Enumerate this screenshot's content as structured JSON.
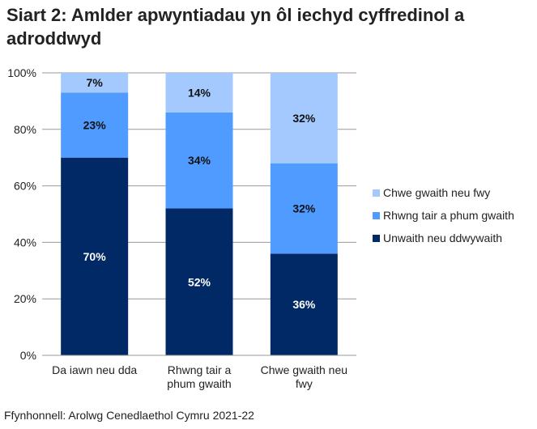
{
  "title": "Siart 2: Amlder apwyntiadau yn ôl iechyd cyffredinol a adroddwyd",
  "source": "Ffynhonnell: Arolwg Cenedlaethol Cymru 2021-22",
  "chart_data": {
    "type": "bar",
    "stacked": true,
    "categories": [
      [
        "Da iawn neu dda"
      ],
      [
        "Rhwng tair a",
        "phum gwaith"
      ],
      [
        "Chwe gwaith neu",
        "fwy"
      ]
    ],
    "series": [
      {
        "name": "Unwaith neu ddwywaith",
        "values": [
          70,
          52,
          36
        ],
        "color": "#002966",
        "label_color": "#ffffff"
      },
      {
        "name": "Rhwng tair a phum gwaith",
        "values": [
          23,
          34,
          32
        ],
        "color": "#4f9bff",
        "label_color": "#111111"
      },
      {
        "name": "Chwe gwaith neu fwy",
        "values": [
          7,
          14,
          32
        ],
        "color": "#a3c9ff",
        "label_color": "#111111"
      }
    ],
    "ylim": [
      0,
      100
    ],
    "yticks": [
      0,
      20,
      40,
      60,
      80,
      100
    ],
    "ytick_suffix": "%",
    "grid": true,
    "legend": "right"
  }
}
